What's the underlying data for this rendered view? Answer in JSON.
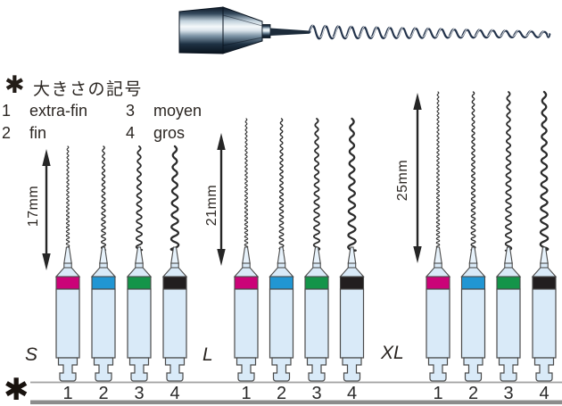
{
  "legend": {
    "marker": "✱",
    "title": "大きさの記号",
    "items": [
      {
        "num": "1",
        "label": "extra-fin"
      },
      {
        "num": "2",
        "label": "fin"
      },
      {
        "num": "3",
        "label": "moyen"
      },
      {
        "num": "4",
        "label": "gros"
      }
    ]
  },
  "groups": [
    {
      "label": "S",
      "length": "17mm",
      "numbers": [
        "1",
        "2",
        "3",
        "4"
      ]
    },
    {
      "label": "L",
      "length": "21mm",
      "numbers": [
        "1",
        "2",
        "3",
        "4"
      ]
    },
    {
      "label": "XL",
      "length": "25mm",
      "numbers": [
        "1",
        "2",
        "3",
        "4"
      ]
    }
  ],
  "footer": {
    "marker": "✱"
  },
  "colors": {
    "size_1": "#cb0378",
    "size_2": "#2196d3",
    "size_3": "#149449",
    "size_4": "#221e1f",
    "handle": "#d9eaf8",
    "tip": "#e7f2fb",
    "outline": "#4a4a4a",
    "wire": "#2b2b2b",
    "rule_thin": "#a3a3a3",
    "rule_thick": "#8c8c8c"
  }
}
